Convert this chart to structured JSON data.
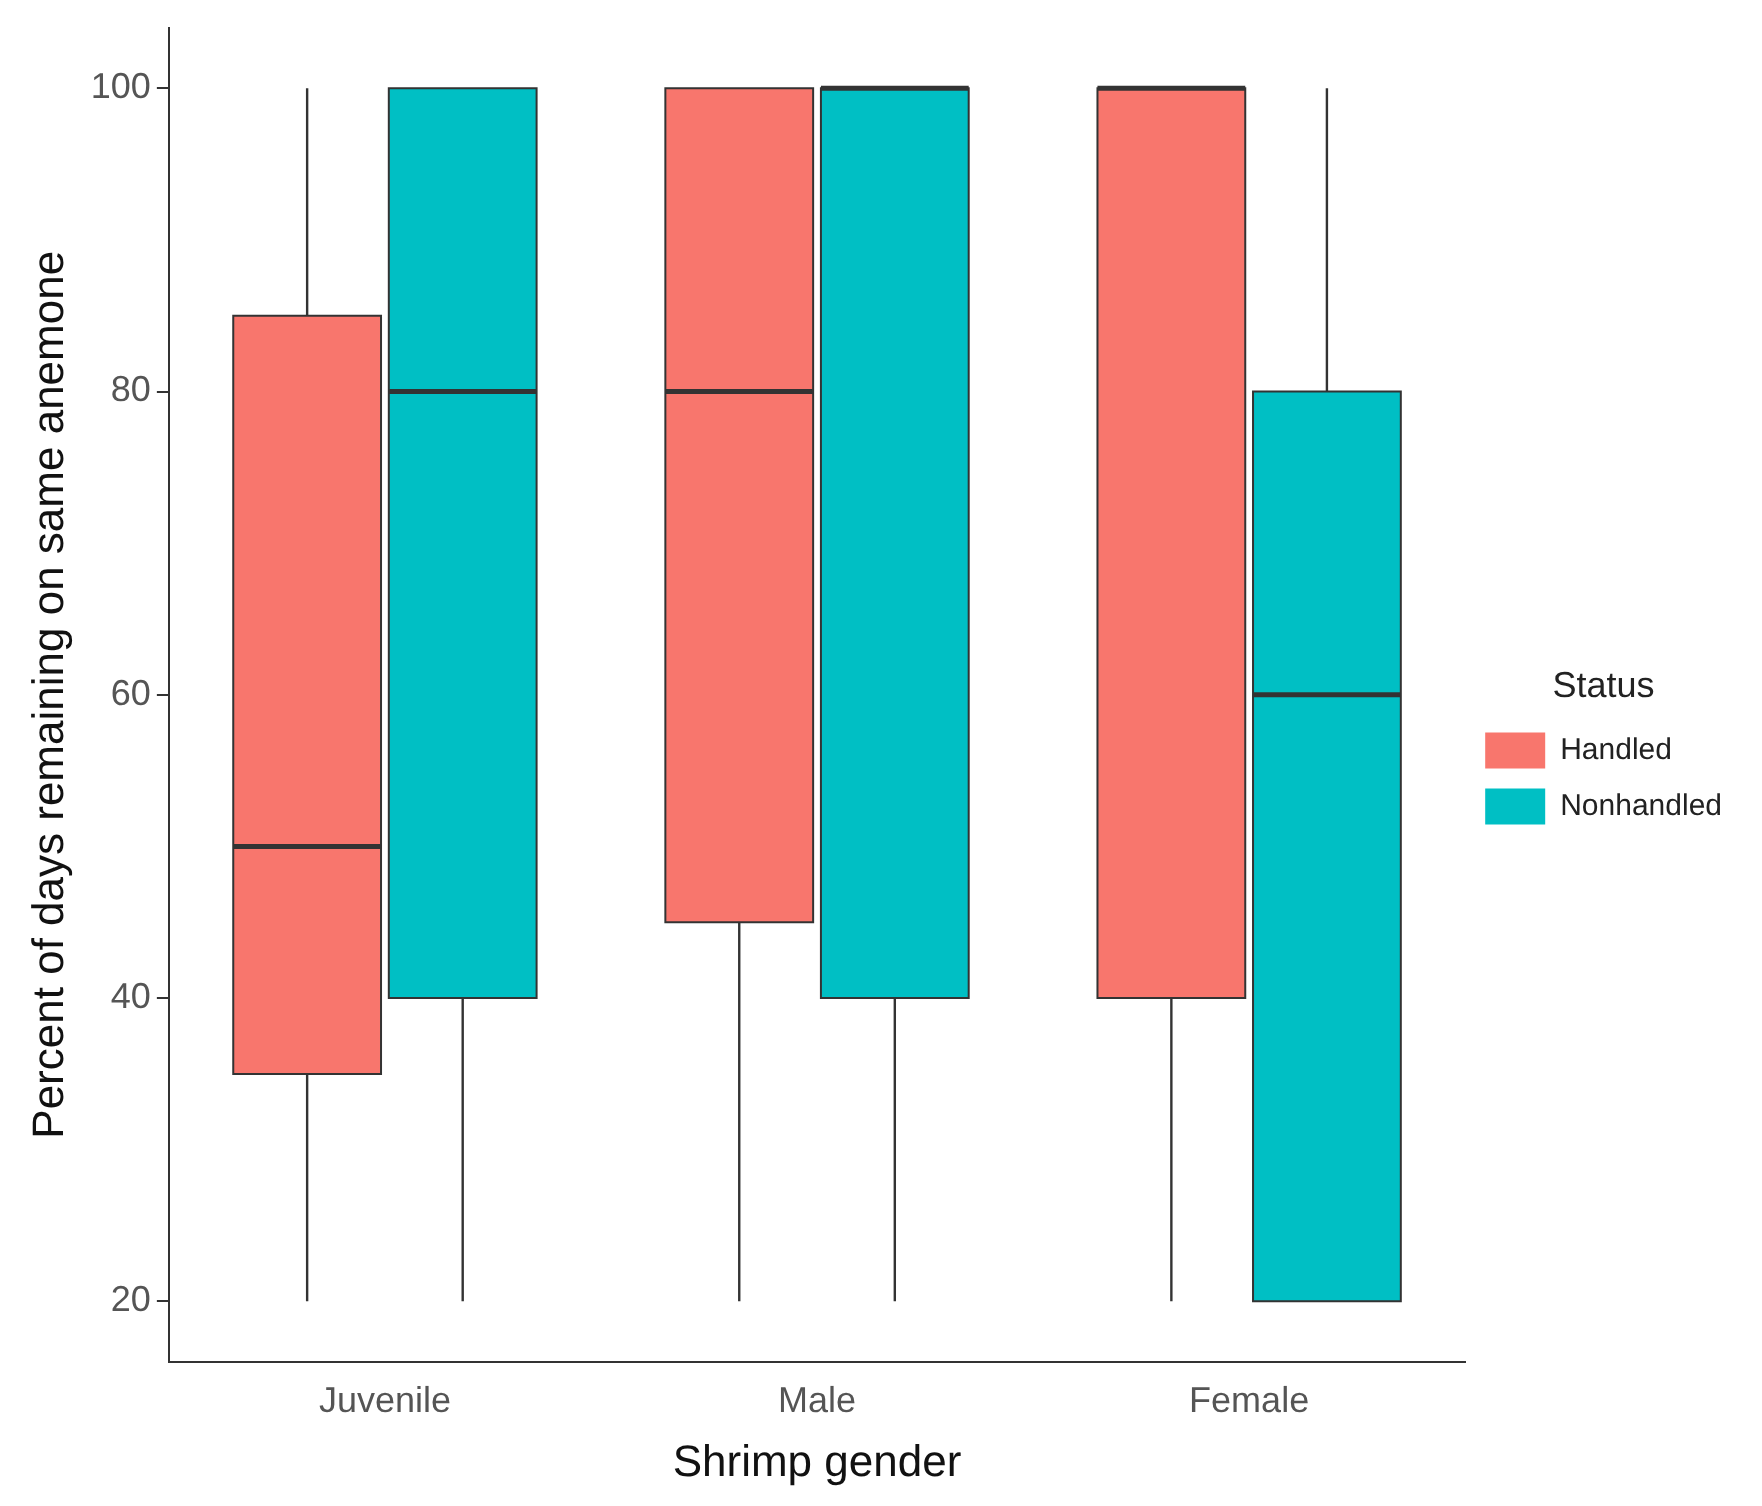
{
  "chart_data": {
    "type": "box",
    "xlabel": "Shrimp gender",
    "ylabel": "Percent of days remaining on same anemone",
    "legend_title": "Status",
    "legend": "right",
    "grid": false,
    "categories": [
      "Juvenile",
      "Male",
      "Female"
    ],
    "ylim": [
      16,
      104
    ],
    "yticks": [
      20,
      40,
      60,
      80,
      100
    ],
    "series": [
      {
        "name": "Handled",
        "color": "#f8766d",
        "boxes": [
          {
            "low": 20,
            "q1": 35,
            "median": 50,
            "q3": 85,
            "high": 100
          },
          {
            "low": 20,
            "q1": 45,
            "median": 80,
            "q3": 100,
            "high": 100
          },
          {
            "low": 20,
            "q1": 40,
            "median": 100,
            "q3": 100,
            "high": 100
          }
        ]
      },
      {
        "name": "Nonhandled",
        "color": "#00bfc4",
        "boxes": [
          {
            "low": 20,
            "q1": 40,
            "median": 80,
            "q3": 100,
            "high": 100
          },
          {
            "low": 20,
            "q1": 40,
            "median": 100,
            "q3": 100,
            "high": 100
          },
          {
            "low": 20,
            "q1": 20,
            "median": 60,
            "q3": 80,
            "high": 100
          }
        ]
      }
    ]
  }
}
